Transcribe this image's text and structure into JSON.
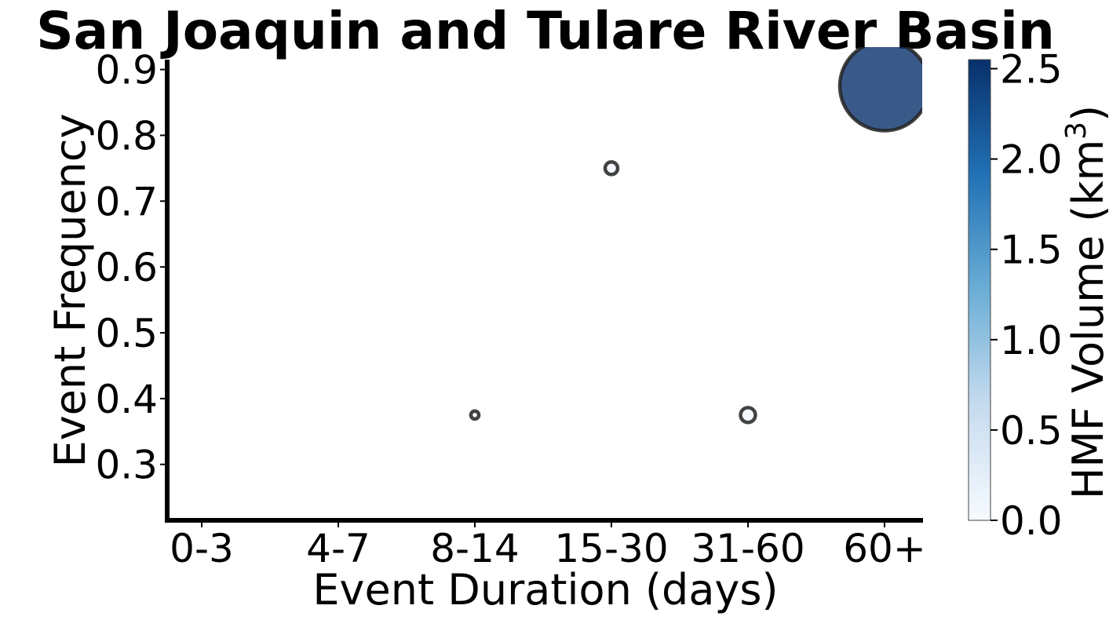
{
  "chart_data": {
    "type": "scatter",
    "title": "San Joaquin and Tulare River Basin",
    "xlabel": "Event Duration (days)",
    "ylabel": "Event Frequency",
    "categories": [
      "0-3",
      "4-7",
      "8-14",
      "15-30",
      "31-60",
      "60+"
    ],
    "ylim": [
      0.215,
      0.915
    ],
    "yticks": [
      "0.3",
      "0.4",
      "0.5",
      "0.6",
      "0.7",
      "0.8",
      "0.9"
    ],
    "points": [
      {
        "x": "8-14",
        "y": 0.375,
        "volume": 0.02
      },
      {
        "x": "15-30",
        "y": 0.75,
        "volume": 0.05
      },
      {
        "x": "31-60",
        "y": 0.375,
        "volume": 0.07
      },
      {
        "x": "60+",
        "y": 0.875,
        "volume": 2.55
      }
    ],
    "colorbar": {
      "label_prefix": "HMF Volume (km",
      "label_superscript": "3",
      "label_suffix": ")",
      "range": [
        0,
        2.55
      ],
      "ticks": [
        "0.0",
        "0.5",
        "1.0",
        "1.5",
        "2.0",
        "2.5"
      ],
      "colormap": "Blues",
      "colors": [
        "#f7fbff",
        "#c6dbef",
        "#6baed6",
        "#2171b5",
        "#08306b"
      ]
    },
    "grid": false,
    "legend": "none"
  }
}
